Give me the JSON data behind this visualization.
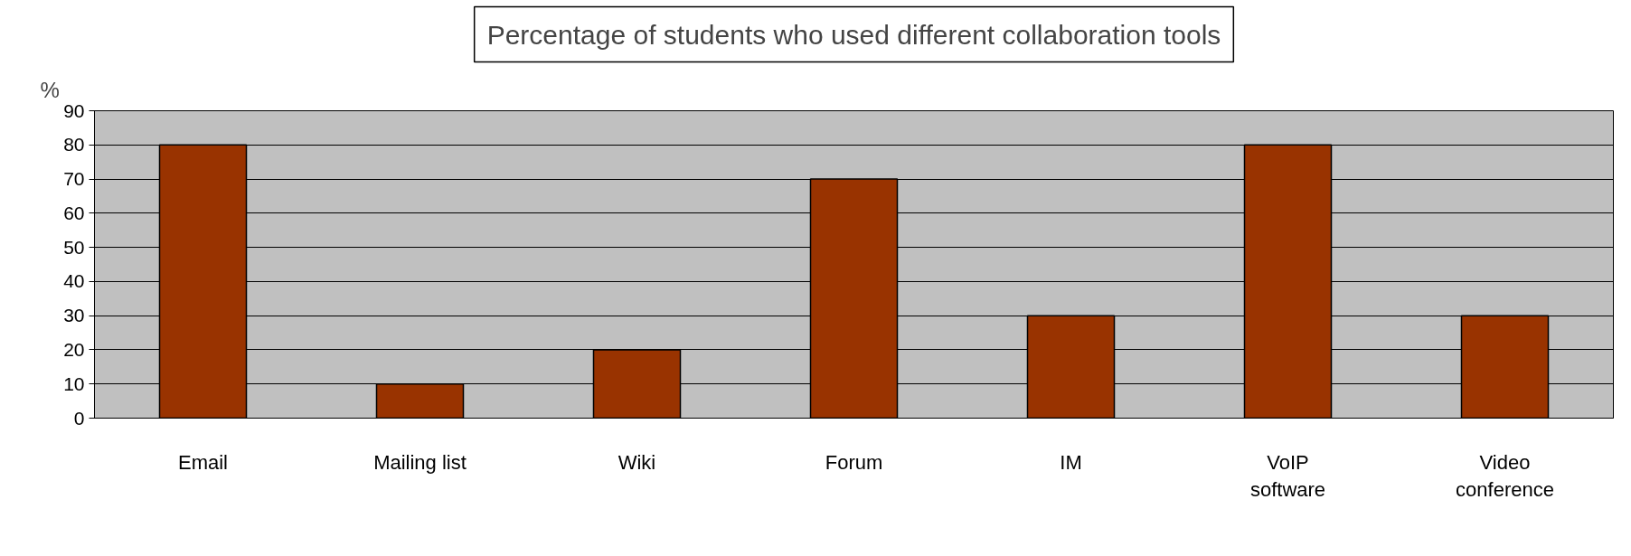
{
  "chart_data": {
    "type": "bar",
    "title": "Percentage of students who used different collaboration tools",
    "ylabel": "%",
    "categories": [
      "Email",
      "Mailing list",
      "Wiki",
      "Forum",
      "IM",
      "VoIP software",
      "Video conference"
    ],
    "values": [
      80,
      10,
      20,
      70,
      30,
      80,
      30
    ],
    "color": "#993300",
    "ylim": [
      0,
      90
    ],
    "yticks": [
      0,
      10,
      20,
      30,
      40,
      50,
      60,
      70,
      80,
      90
    ],
    "grid": "y"
  }
}
